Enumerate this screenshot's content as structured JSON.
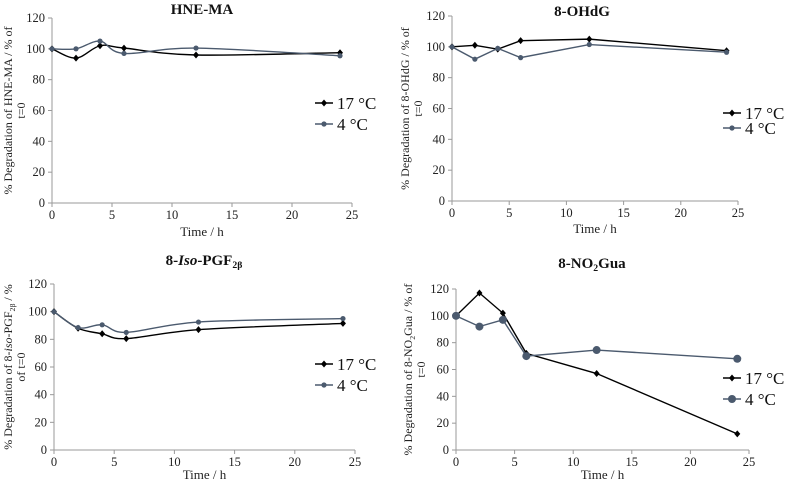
{
  "colors": {
    "s17": "#000000",
    "s4": "#4b5a6e",
    "axis": "#9a9a9a"
  },
  "chart_data": [
    {
      "type": "line",
      "title": [
        {
          "t": "HNE-MA"
        }
      ],
      "xlabel": "Time / h",
      "ylabel": [
        [
          {
            "t": "% Degradation of HNE-MA / % of"
          }
        ],
        [
          {
            "t": "t=0"
          }
        ]
      ],
      "xlim": [
        0,
        25
      ],
      "ylim": [
        0,
        120
      ],
      "xticks": [
        0,
        5,
        10,
        15,
        20,
        25
      ],
      "yticks": [
        0,
        20,
        40,
        60,
        80,
        100,
        120
      ],
      "smooth": true,
      "legend_position": "right",
      "x": [
        0,
        2,
        4,
        6,
        12,
        24
      ],
      "series": [
        {
          "name": "17 °C",
          "values": [
            100,
            94,
            102,
            100.5,
            96,
            97.5
          ]
        },
        {
          "name": "4 °C",
          "values": [
            100,
            100,
            105,
            97,
            100.5,
            95.5
          ]
        }
      ]
    },
    {
      "type": "line",
      "title": [
        {
          "t": "8-OHdG"
        }
      ],
      "xlabel": "Time / h",
      "ylabel": [
        [
          {
            "t": "% Degradation of 8-OHdG  / % of"
          }
        ],
        [
          {
            "t": "t=0"
          }
        ]
      ],
      "xlim": [
        0,
        25
      ],
      "ylim": [
        0,
        120
      ],
      "xticks": [
        0,
        5,
        10,
        15,
        20,
        25
      ],
      "yticks": [
        0,
        20,
        40,
        60,
        80,
        100,
        120
      ],
      "smooth": false,
      "legend_position": "right",
      "x": [
        0,
        2,
        4,
        6,
        12,
        24
      ],
      "series": [
        {
          "name": "17 °C",
          "values": [
            100,
            101,
            98.5,
            104,
            105,
            97.5
          ]
        },
        {
          "name": "4 °C",
          "values": [
            100,
            92,
            99,
            93,
            101.5,
            96.5
          ]
        }
      ]
    },
    {
      "type": "line",
      "title": [
        {
          "t": "8-"
        },
        {
          "t": "Iso",
          "i": true
        },
        {
          "t": "-PGF"
        },
        {
          "t": "2β",
          "sub": true
        }
      ],
      "xlabel": "Time / h",
      "ylabel": [
        [
          {
            "t": "% Degradation of 8-"
          },
          {
            "t": "iso",
            "i": true
          },
          {
            "t": "-PGF"
          },
          {
            "t": "2β",
            "sub": true
          },
          {
            "t": " / %"
          }
        ],
        [
          {
            "t": "of t=0"
          }
        ]
      ],
      "xlim": [
        0,
        25
      ],
      "ylim": [
        0,
        120
      ],
      "xticks": [
        0,
        5,
        10,
        15,
        20,
        25
      ],
      "yticks": [
        0,
        20,
        40,
        60,
        80,
        100,
        120
      ],
      "smooth": true,
      "legend_position": "right",
      "x": [
        0,
        2,
        4,
        6,
        12,
        24
      ],
      "series": [
        {
          "name": "17 °C",
          "values": [
            100,
            88,
            84,
            80.5,
            87,
            91.5
          ]
        },
        {
          "name": "4 °C",
          "values": [
            100,
            88.5,
            90.5,
            85,
            92.5,
            95
          ]
        }
      ]
    },
    {
      "type": "line",
      "title": [
        {
          "t": "8-NO"
        },
        {
          "t": "2",
          "sub": true
        },
        {
          "t": "Gua"
        }
      ],
      "xlabel": "Time / h",
      "ylabel": [
        [
          {
            "t": "% Degradation of 8-NO"
          },
          {
            "t": "2",
            "sub": true
          },
          {
            "t": "Gua  / % of"
          }
        ],
        [
          {
            "t": "t=0"
          }
        ]
      ],
      "xlim": [
        0,
        25
      ],
      "ylim": [
        0,
        120
      ],
      "xticks": [
        0,
        5,
        10,
        15,
        20,
        25
      ],
      "yticks": [
        0,
        20,
        40,
        60,
        80,
        100,
        120
      ],
      "smooth": false,
      "legend_position": "right",
      "x": [
        0,
        2,
        4,
        6,
        12,
        24
      ],
      "series": [
        {
          "name": "17 °C",
          "values": [
            100,
            117,
            102,
            72,
            57,
            12
          ]
        },
        {
          "name": "4 °C",
          "values": [
            100,
            92,
            97,
            70,
            74.5,
            68
          ]
        }
      ]
    }
  ]
}
